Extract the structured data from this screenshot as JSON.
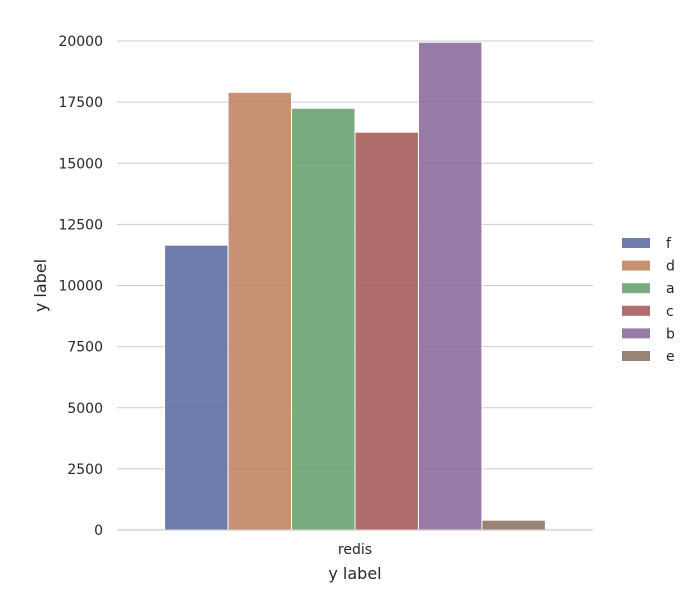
{
  "chart_data": {
    "type": "bar",
    "categories": [
      "redis"
    ],
    "series": [
      {
        "name": "f",
        "values": [
          11650
        ],
        "color": "#5a6aa3"
      },
      {
        "name": "d",
        "values": [
          17900
        ],
        "color": "#c18260"
      },
      {
        "name": "a",
        "values": [
          17250
        ],
        "color": "#67a06c"
      },
      {
        "name": "c",
        "values": [
          16270
        ],
        "color": "#a65958"
      },
      {
        "name": "b",
        "values": [
          19950
        ],
        "color": "#8a6a9b"
      },
      {
        "name": "e",
        "values": [
          400
        ],
        "color": "#8b7260"
      }
    ],
    "title": "",
    "xlabel": "y label",
    "ylabel": "y label",
    "ylim": [
      0,
      20000
    ],
    "yticks": [
      0,
      2500,
      5000,
      7500,
      10000,
      12500,
      15000,
      17500,
      20000
    ],
    "grid": "horizontal",
    "legend": "right",
    "gridline_color": "#cccccc",
    "axis_line_color": "#cccccc"
  }
}
